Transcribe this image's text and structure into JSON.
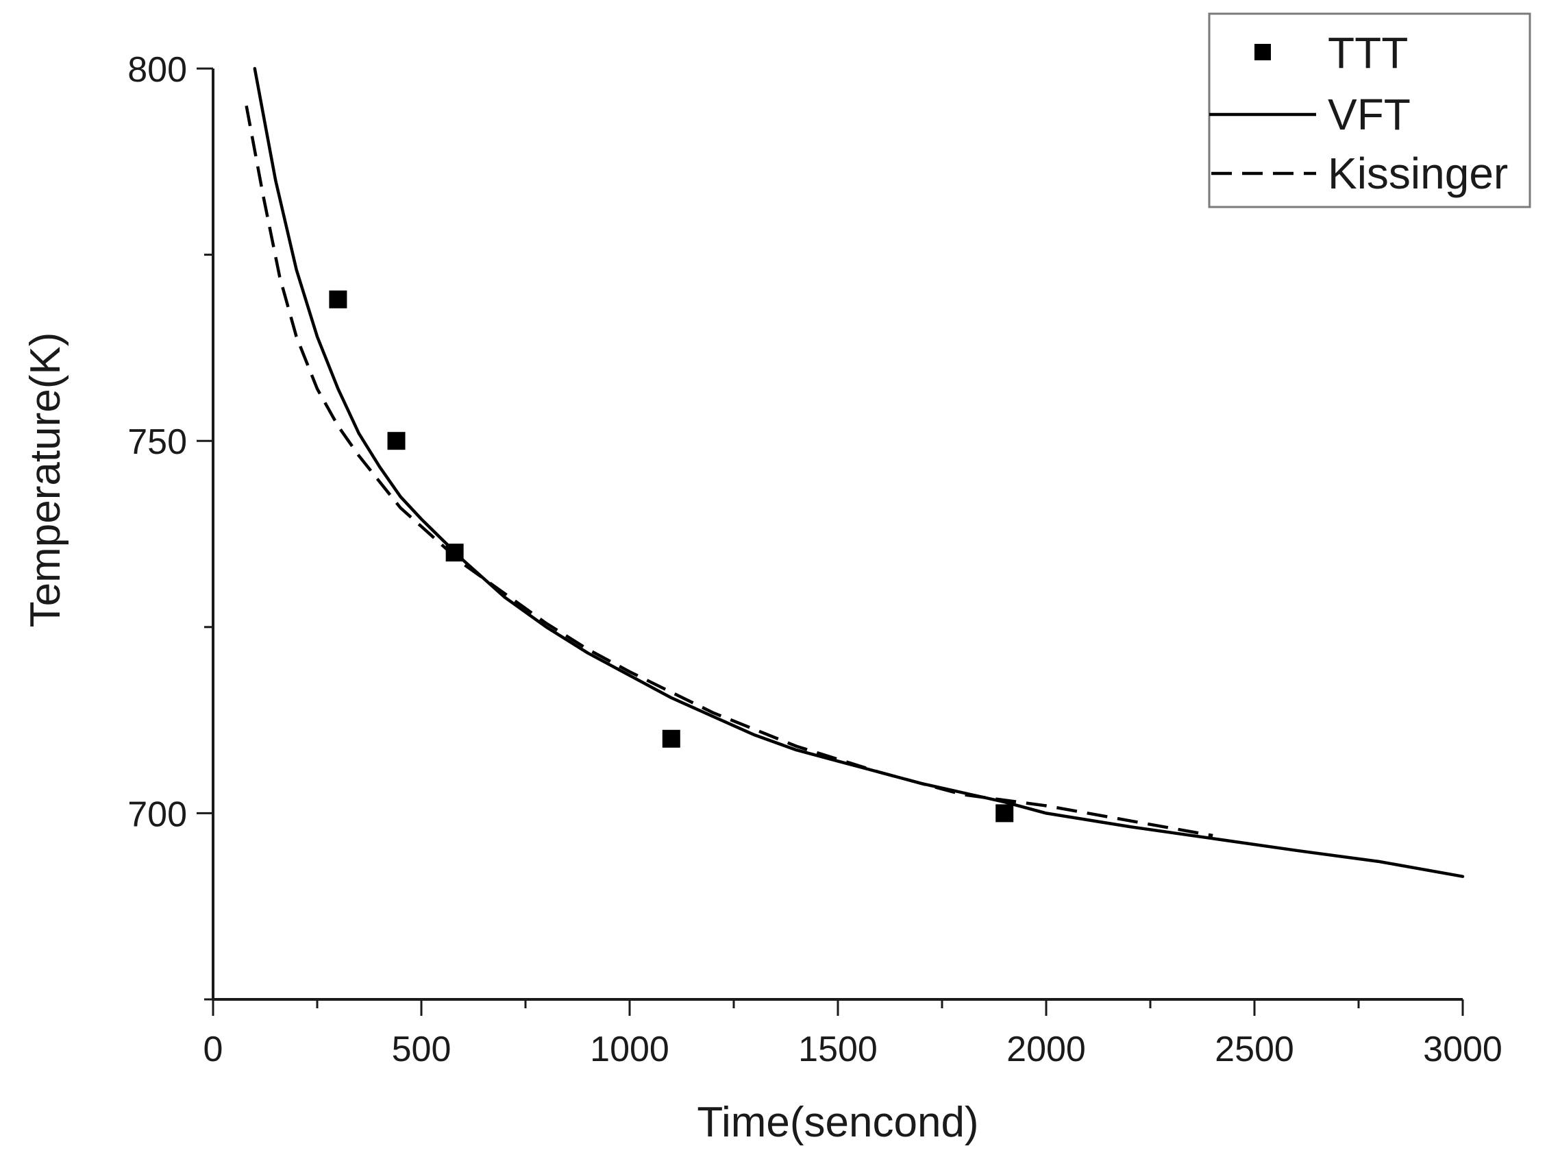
{
  "chart_data": {
    "type": "line",
    "title": "",
    "xlabel": "Time(sencond)",
    "ylabel": "Temperature(K)",
    "xlim": [
      0,
      3000
    ],
    "ylim": [
      675,
      800
    ],
    "x_ticks": [
      0,
      500,
      1000,
      1500,
      2000,
      2500,
      3000
    ],
    "x_minor_step": 250,
    "y_ticks": [
      700,
      750,
      800
    ],
    "y_minor_step": 25,
    "grid": false,
    "legend_position": "top-right",
    "legend": [
      "TTT",
      "VFT",
      "Kissinger"
    ],
    "series": [
      {
        "name": "TTT",
        "kind": "scatter",
        "marker": "square",
        "color": "#000000",
        "x": [
          300,
          440,
          580,
          1100,
          1900
        ],
        "y": [
          769,
          750,
          735,
          710,
          700
        ]
      },
      {
        "name": "VFT",
        "kind": "line",
        "style": "solid",
        "color": "#000000",
        "x": [
          100,
          150,
          200,
          250,
          300,
          350,
          400,
          450,
          500,
          600,
          700,
          800,
          900,
          1000,
          1100,
          1200,
          1300,
          1400,
          1500,
          1700,
          1900,
          2000,
          2200,
          2400,
          2600,
          2800,
          3000
        ],
        "y": [
          800,
          785,
          773,
          764,
          757,
          751,
          746.5,
          742.5,
          739.5,
          734,
          729,
          725,
          721.5,
          718.5,
          715.5,
          713,
          710.5,
          708.5,
          707,
          704,
          701.5,
          700,
          698.2,
          696.6,
          695,
          693.5,
          691.5
        ]
      },
      {
        "name": "Kissinger",
        "kind": "line",
        "style": "dashed",
        "color": "#000000",
        "x": [
          80,
          120,
          160,
          200,
          250,
          300,
          350,
          400,
          450,
          500,
          600,
          700,
          800,
          900,
          1000,
          1200,
          1400,
          1600,
          1800,
          2000,
          2200,
          2400
        ],
        "y": [
          795,
          783,
          772,
          764,
          757,
          752,
          748,
          744.5,
          741,
          738.5,
          733.5,
          729.5,
          725.5,
          722,
          719,
          713.5,
          709,
          705.5,
          702.5,
          701,
          699,
          697
        ]
      }
    ]
  }
}
